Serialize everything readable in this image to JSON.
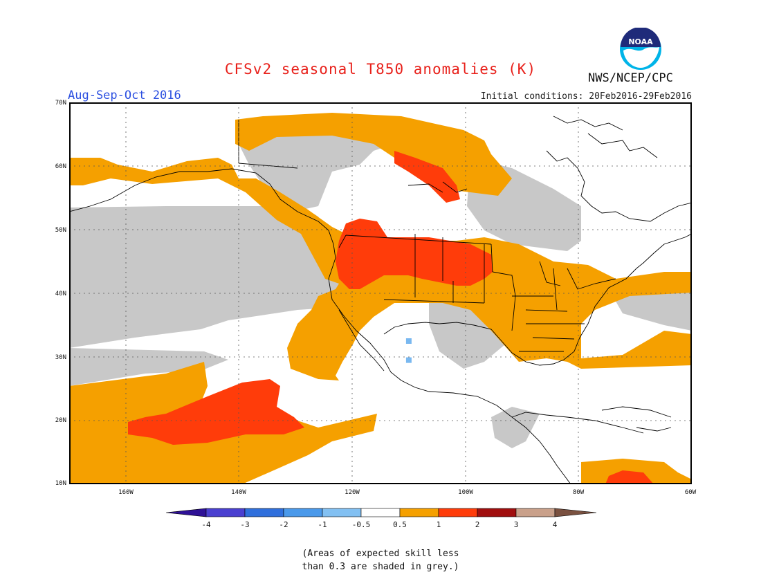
{
  "title": "CFSv2 seasonal T850 anomalies (K)",
  "period": "Aug-Sep-Oct 2016",
  "initial_conditions": "Initial conditions: 20Feb2016-29Feb2016",
  "agency": "NWS/NCEP/CPC",
  "logo_text": "NOAA",
  "map": {
    "lat_labels": [
      "70N",
      "60N",
      "50N",
      "40N",
      "30N",
      "20N",
      "10N"
    ],
    "lon_labels": [
      "160W",
      "140W",
      "120W",
      "100W",
      "80W",
      "60W"
    ],
    "colors": {
      "grey_low_skill": "#c8c8c8",
      "anom_0_5_to_1": "#f5a000",
      "anom_1_to_2": "#ff3c0a",
      "land_line": "#000000",
      "ocean": "#ffffff"
    },
    "markers": [
      {
        "lat": 32.5,
        "lon": -110,
        "color": "#79b8f0"
      },
      {
        "lat": 29.5,
        "lon": -110,
        "color": "#79b8f0"
      }
    ]
  },
  "colorbar": {
    "levels": [
      "-4",
      "-3",
      "-2",
      "-1",
      "-0.5",
      "0.5",
      "1",
      "2",
      "3",
      "4"
    ],
    "colors": [
      "#2e1196",
      "#4a3fd0",
      "#2f6fdc",
      "#4a99ea",
      "#82c0f2",
      "#ffffff",
      "#f5a000",
      "#ff3c0a",
      "#a00e0e",
      "#c9a08a",
      "#7a5140"
    ]
  },
  "note_line1": "(Areas of expected skill less",
  "note_line2": "than 0.3 are shaded in grey.)"
}
